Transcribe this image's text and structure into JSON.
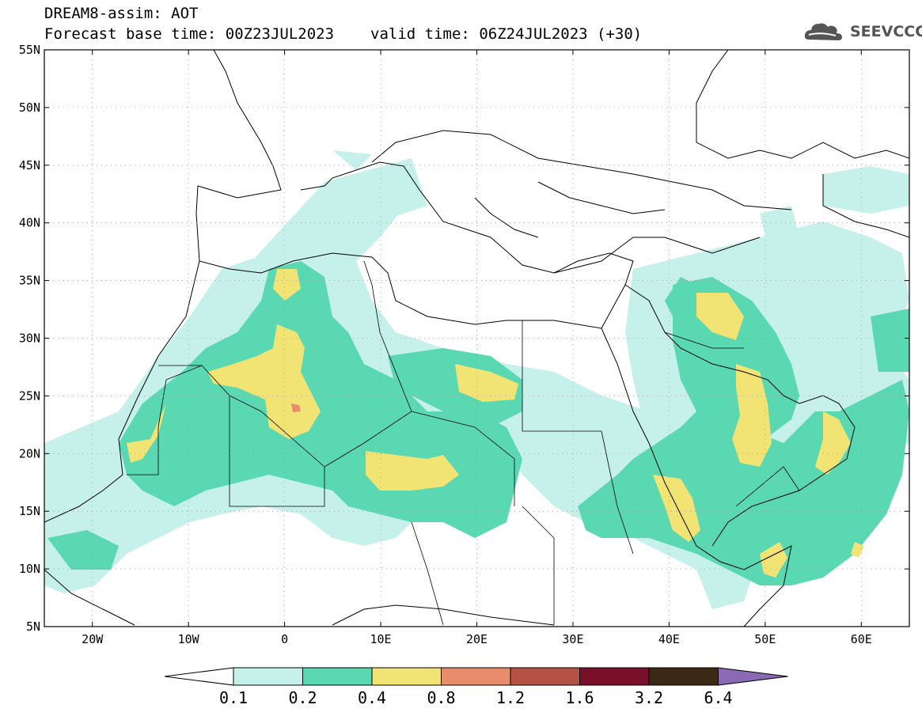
{
  "header": {
    "title": "DREAM8-assim: AOT",
    "base_time": "Forecast base time: 00Z23JUL2023",
    "valid_time": "valid time: 06Z24JUL2023 (+30)"
  },
  "logo": {
    "text": "SEEVCCC"
  },
  "map": {
    "lon_range": [
      -25,
      65
    ],
    "lat_range": [
      5,
      55
    ],
    "lat_ticks": [
      {
        "value": 55,
        "label": "55N"
      },
      {
        "value": 50,
        "label": "50N"
      },
      {
        "value": 45,
        "label": "45N"
      },
      {
        "value": 40,
        "label": "40N"
      },
      {
        "value": 35,
        "label": "35N"
      },
      {
        "value": 30,
        "label": "30N"
      },
      {
        "value": 25,
        "label": "25N"
      },
      {
        "value": 20,
        "label": "20N"
      },
      {
        "value": 15,
        "label": "15N"
      },
      {
        "value": 10,
        "label": "10N"
      },
      {
        "value": 5,
        "label": "5N"
      }
    ],
    "lon_ticks": [
      {
        "value": -20,
        "label": "20W"
      },
      {
        "value": -10,
        "label": "10W"
      },
      {
        "value": 0,
        "label": "0"
      },
      {
        "value": 10,
        "label": "10E"
      },
      {
        "value": 20,
        "label": "20E"
      },
      {
        "value": 30,
        "label": "30E"
      },
      {
        "value": 40,
        "label": "40E"
      },
      {
        "value": 50,
        "label": "50E"
      },
      {
        "value": 60,
        "label": "60E"
      }
    ],
    "grid": "dotted",
    "colors": {
      "c01": "#c6f0ea",
      "c02": "#5ad8b2",
      "c04": "#f2e474",
      "c08": "#e98c6c",
      "c12": "#b45245",
      "c16": "#7a0f2a",
      "c32": "#3b2815",
      "c64": "#8a6ab3"
    }
  },
  "colorbar": {
    "labels": [
      "0.1",
      "0.2",
      "0.4",
      "0.8",
      "1.2",
      "1.6",
      "3.2",
      "6.4"
    ],
    "colors": [
      "#c6f0ea",
      "#5ad8b2",
      "#f2e474",
      "#e98c6c",
      "#b45245",
      "#7a0f2a",
      "#3b2815"
    ],
    "below_color": "#ffffff",
    "above_color": "#8a6ab3"
  }
}
